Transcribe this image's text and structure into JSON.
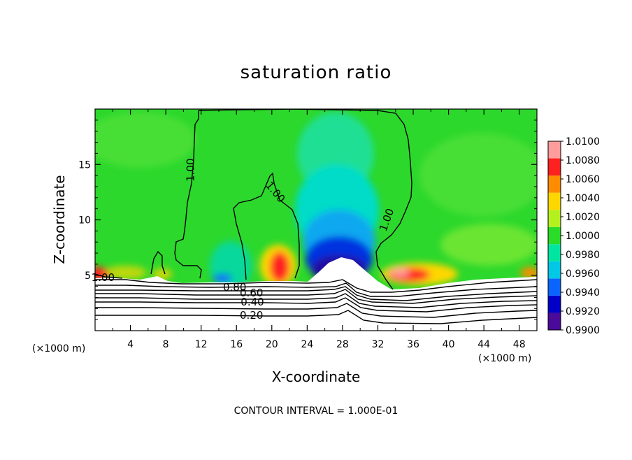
{
  "chart_data": {
    "type": "heatmap",
    "title": "saturation ratio",
    "xlabel": "X-coordinate",
    "ylabel": "Z-coordinate",
    "x_unit": "(×1000 m)",
    "y_unit": "(×1000 m)",
    "xlim": [
      0,
      50
    ],
    "ylim": [
      0,
      20
    ],
    "x_ticks": [
      4,
      8,
      12,
      16,
      20,
      24,
      28,
      32,
      36,
      40,
      44,
      48
    ],
    "x_tick_labels": [
      "4",
      "8",
      "12",
      "16",
      "20",
      "24",
      "28",
      "32",
      "36",
      "40",
      "44",
      "48"
    ],
    "y_ticks": [
      5,
      10,
      15
    ],
    "y_tick_labels": [
      "5",
      "10",
      "15"
    ],
    "colorbar": {
      "levels": [
        0.99,
        0.992,
        0.994,
        0.996,
        0.998,
        1.0,
        1.002,
        1.004,
        1.006,
        1.008,
        1.01
      ],
      "labels": [
        "0.9900",
        "0.9920",
        "0.9940",
        "0.9960",
        "0.9980",
        "1.0000",
        "1.0020",
        "1.0040",
        "1.0060",
        "1.0080",
        "1.0100"
      ],
      "colors": [
        "#4a0a9a",
        "#0000c8",
        "#0a64ff",
        "#00c8e6",
        "#00e6a0",
        "#28dc28",
        "#b4f01e",
        "#ffd700",
        "#ff8c00",
        "#ff2020",
        "#ff9c9c"
      ]
    },
    "contour_labels": [
      {
        "text": "1.00",
        "x": 0.9,
        "z": 4.8
      },
      {
        "text": "1.00",
        "x": 10.8,
        "z": 14.5
      },
      {
        "text": "1.00",
        "x": 20.4,
        "z": 12.5
      },
      {
        "text": "1.00",
        "x": 33.0,
        "z": 10.0
      },
      {
        "text": "0.80",
        "x": 15.8,
        "z": 3.9
      },
      {
        "text": "0.60",
        "x": 17.7,
        "z": 3.4
      },
      {
        "text": "0.40",
        "x": 17.8,
        "z": 2.6
      },
      {
        "text": "0.20",
        "x": 17.7,
        "z": 1.4
      }
    ],
    "contour_interval_text": "CONTOUR INTERVAL = 1.000E-01"
  }
}
